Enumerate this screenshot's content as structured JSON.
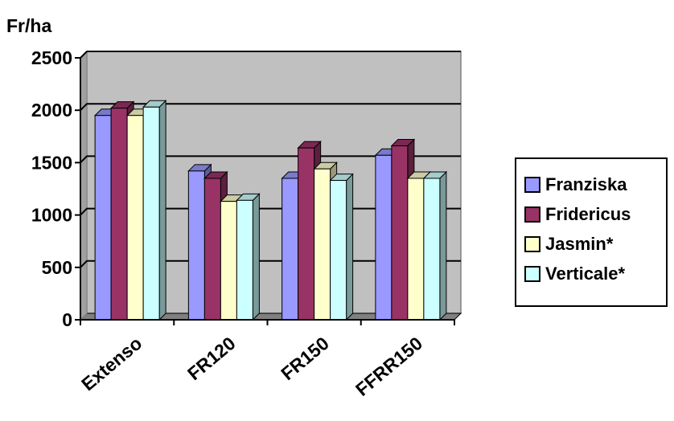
{
  "chart_data": {
    "type": "bar",
    "title": "",
    "ylabel": "Fr/ha",
    "xlabel": "",
    "categories": [
      "Extenso",
      "FR120",
      "FR150",
      "FFRR150"
    ],
    "series": [
      {
        "name": "Franziska",
        "color": "#9999ff",
        "values": [
          1950,
          1420,
          1350,
          1570
        ]
      },
      {
        "name": "Fridericus",
        "color": "#993366",
        "values": [
          2020,
          1350,
          1640,
          1660
        ]
      },
      {
        "name": "Jasmin*",
        "color": "#ffffcc",
        "values": [
          1950,
          1130,
          1440,
          1350
        ]
      },
      {
        "name": "Verticale*",
        "color": "#ccffff",
        "values": [
          2030,
          1140,
          1330,
          1350
        ]
      }
    ],
    "ylim": [
      0,
      2500
    ],
    "yticks": [
      0,
      500,
      1000,
      1500,
      2000,
      2500
    ],
    "grid": true,
    "legend_position": "right",
    "plot_background": "#c0c0c0"
  }
}
